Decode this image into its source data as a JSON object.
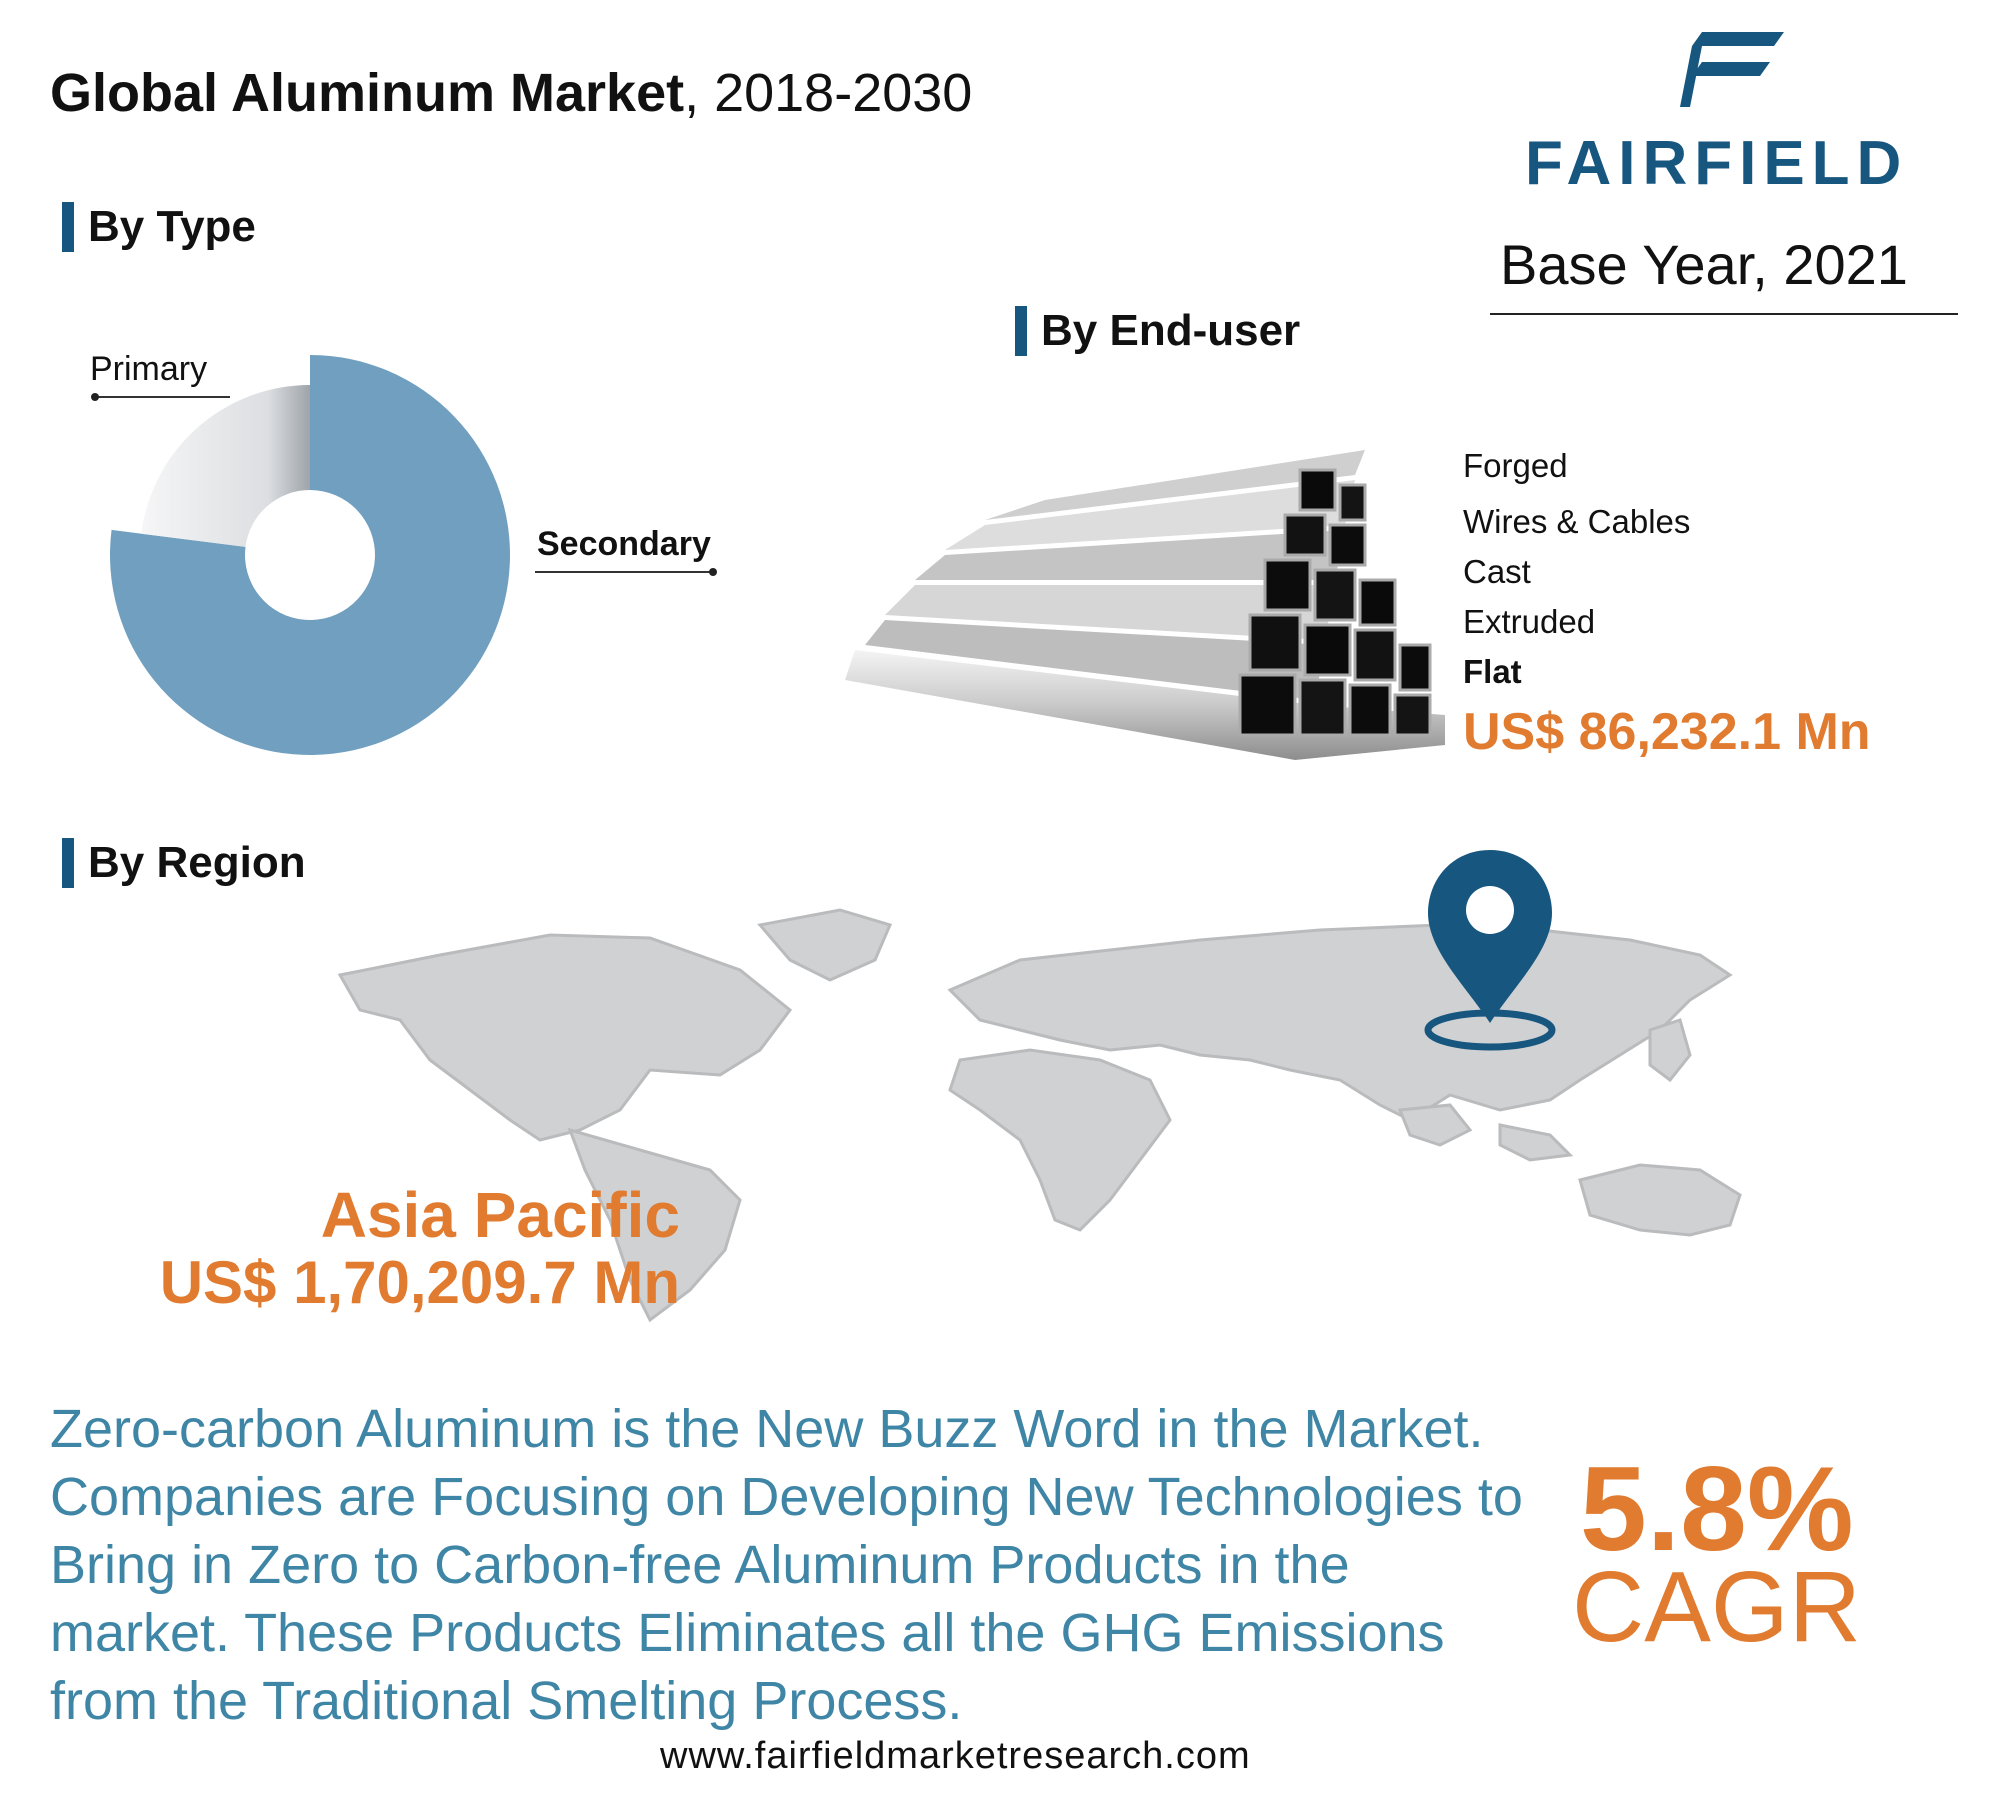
{
  "header": {
    "title_bold": "Global Aluminum Market",
    "title_years": ", 2018-2030",
    "logo_text": "FAIRFIELD",
    "base_year": "Base Year, 2021"
  },
  "by_type": {
    "heading": "By Type",
    "primary_label": "Primary",
    "secondary_label": "Secondary"
  },
  "by_end_user": {
    "heading": "By End-user",
    "items": [
      "Forged",
      "Wires & Cables",
      "Cast",
      "Extruded",
      "Flat"
    ],
    "highlight_value": "US$ 86,232.1 Mn"
  },
  "by_region": {
    "heading": "By Region",
    "highlight_region": "Asia Pacific",
    "highlight_value": "US$ 1,70,209.7 Mn"
  },
  "summary": {
    "text": "Zero-carbon Aluminum is the New Buzz Word in the Market. Companies are Focusing on Developing New Technologies to Bring in Zero to Carbon-free Aluminum Products in the market. These Products Eliminates all the GHG Emissions from the Traditional Smelting Process."
  },
  "cagr": {
    "value": "5.8%",
    "label": "CAGR"
  },
  "footer": {
    "url": "www.fairfieldmarketresearch.com"
  },
  "colors": {
    "brand_blue": "#17567f",
    "secondary_slice": "#719fbf",
    "primary_slice": "#e2e4e7",
    "accent_orange": "#e07b30",
    "paragraph_teal": "#3f86a6"
  },
  "chart_data": {
    "type": "pie",
    "categories": [
      "Secondary",
      "Primary"
    ],
    "values": [
      0.77,
      0.23
    ],
    "title": "",
    "grid": false
  }
}
